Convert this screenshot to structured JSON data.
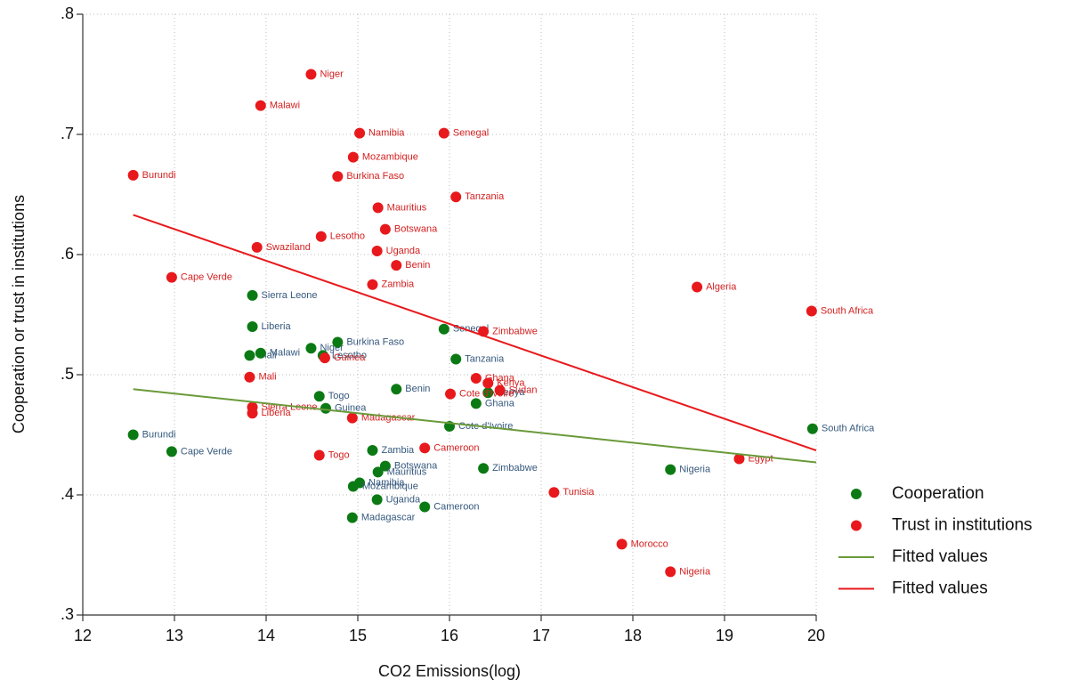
{
  "chart_data": {
    "type": "scatter",
    "x_label": "CO2 Emissions(log)",
    "y_label": "Cooperation or trust in institutions",
    "xlim": [
      12,
      20
    ],
    "ylim": [
      0.3,
      0.8
    ],
    "xticks": [
      12,
      13,
      14,
      15,
      16,
      17,
      18,
      19,
      20
    ],
    "yticks": [
      {
        "value": 0.3,
        "label": ".3"
      },
      {
        "value": 0.4,
        "label": ".4"
      },
      {
        "value": 0.5,
        "label": ".5"
      },
      {
        "value": 0.6,
        "label": ".6"
      },
      {
        "value": 0.7,
        "label": ".7"
      },
      {
        "value": 0.8,
        "label": ".8"
      }
    ],
    "grid": true,
    "legend": "right",
    "series": [
      {
        "name": "Cooperation",
        "type": "scatter",
        "color": "#0b7a14",
        "label_color": "#35587d",
        "labels": [
          "Burundi",
          "Cape Verde",
          "Sierra Leone",
          "Liberia",
          "Mali",
          "Malawi",
          "Niger",
          "Burkina Faso",
          "Lesotho",
          "Togo",
          "Guinea",
          "Senegal",
          "Tanzania",
          "Benin",
          "Ghana",
          "Kenya",
          "Cote d'Ivoire",
          "Zambia",
          "Botswana",
          "Mauritius",
          "Namibia",
          "Mozambique",
          "Uganda",
          "Cameroon",
          "Madagascar",
          "Zimbabwe",
          "Nigeria",
          "South Africa"
        ],
        "x": [
          12.55,
          12.97,
          13.85,
          13.85,
          13.82,
          13.94,
          14.49,
          14.78,
          14.62,
          14.58,
          14.65,
          15.94,
          16.07,
          15.42,
          16.29,
          16.42,
          16.0,
          15.16,
          15.3,
          15.22,
          15.02,
          14.95,
          15.21,
          15.73,
          14.94,
          16.37,
          18.41,
          19.96
        ],
        "values": [
          0.45,
          0.436,
          0.566,
          0.54,
          0.516,
          0.518,
          0.522,
          0.527,
          0.516,
          0.482,
          0.472,
          0.538,
          0.513,
          0.488,
          0.476,
          0.485,
          0.457,
          0.437,
          0.424,
          0.419,
          0.41,
          0.407,
          0.396,
          0.39,
          0.381,
          0.422,
          0.421,
          0.455
        ]
      },
      {
        "name": "Trust in institutions",
        "type": "scatter",
        "color": "#e8191c",
        "label_color": "#d42020",
        "labels": [
          "Niger",
          "Malawi",
          "Namibia",
          "Senegal",
          "Mozambique",
          "Burundi",
          "Burkina Faso",
          "Tanzania",
          "Mauritius",
          "Botswana",
          "Lesotho",
          "Swaziland",
          "Uganda",
          "Benin",
          "Cape Verde",
          "Zambia",
          "Algeria",
          "South Africa",
          "Zimbabwe",
          "Guinea",
          "Mali",
          "Ghana",
          "Kenya",
          "Sudan",
          "Cote d'Ivoire",
          "Sierra Leone",
          "Liberia",
          "Madagascar",
          "Cameroon",
          "Togo",
          "Egypt",
          "Tunisia",
          "Morocco",
          "Nigeria"
        ],
        "x": [
          14.49,
          13.94,
          15.02,
          15.94,
          14.95,
          12.55,
          14.78,
          16.07,
          15.22,
          15.3,
          14.6,
          13.9,
          15.21,
          15.42,
          12.97,
          15.16,
          18.7,
          19.95,
          16.37,
          14.64,
          13.82,
          16.29,
          16.42,
          16.55,
          16.01,
          13.85,
          13.85,
          14.94,
          15.73,
          14.58,
          19.16,
          17.14,
          17.88,
          18.41
        ],
        "values": [
          0.75,
          0.724,
          0.701,
          0.701,
          0.681,
          0.666,
          0.665,
          0.648,
          0.639,
          0.621,
          0.615,
          0.606,
          0.603,
          0.591,
          0.581,
          0.575,
          0.573,
          0.553,
          0.536,
          0.514,
          0.498,
          0.497,
          0.493,
          0.487,
          0.484,
          0.473,
          0.468,
          0.464,
          0.439,
          0.433,
          0.43,
          0.402,
          0.359,
          0.336
        ]
      },
      {
        "name": "Fitted values",
        "type": "line",
        "color": "#6a9a3a",
        "x": [
          12.55,
          20
        ],
        "values": [
          0.488,
          0.427
        ]
      },
      {
        "name": "Fitted values",
        "type": "line",
        "color": "#e8191c",
        "x": [
          12.55,
          20
        ],
        "values": [
          0.633,
          0.437
        ]
      }
    ]
  }
}
